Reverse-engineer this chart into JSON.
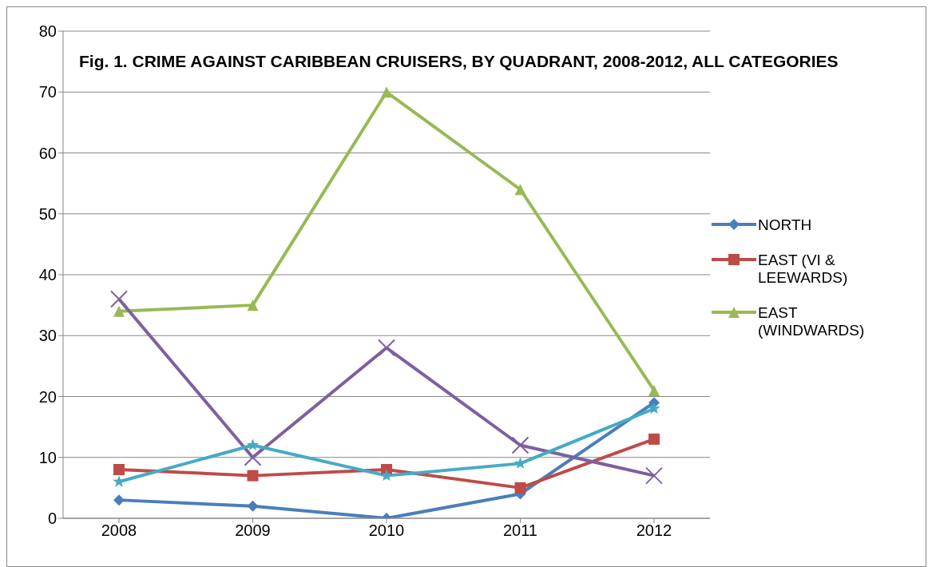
{
  "chart_data": {
    "type": "line",
    "title": "Fig. 1. CRIME AGAINST CARIBBEAN CRUISERS, BY QUADRANT, 2008-2012,  ALL CATEGORIES",
    "categories": [
      "2008",
      "2009",
      "2010",
      "2011",
      "2012"
    ],
    "series": [
      {
        "name": "NORTH",
        "color": "#4a7ebb",
        "marker": "diamond",
        "values": [
          3,
          2,
          0,
          4,
          19
        ]
      },
      {
        "name": "EAST (VI & LEEWARDS)",
        "color": "#be4b48",
        "marker": "square",
        "values": [
          8,
          7,
          8,
          5,
          13
        ]
      },
      {
        "name": "EAST (WINDWARDS)",
        "color": "#98b954",
        "marker": "triangle",
        "values": [
          34,
          35,
          70,
          54,
          21
        ]
      },
      {
        "color": "#7d60a0",
        "marker": "cross",
        "values": [
          36,
          10,
          28,
          12,
          7
        ]
      },
      {
        "color": "#46aac5",
        "marker": "star",
        "values": [
          6,
          12,
          7,
          9,
          18
        ]
      }
    ],
    "ylim": [
      0,
      80
    ],
    "yticks": [
      0,
      10,
      20,
      30,
      40,
      50,
      60,
      70,
      80
    ],
    "grid": "y",
    "legend": "right",
    "line_style": "solid"
  }
}
